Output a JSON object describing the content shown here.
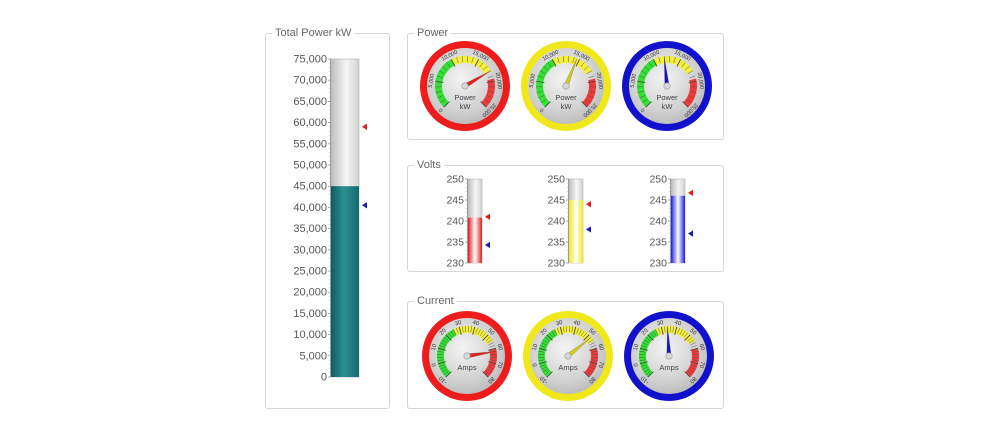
{
  "panels": {
    "total": "Total Power kW",
    "power": "Power",
    "volts": "Volts",
    "current": "Current"
  },
  "chart_data": [
    {
      "type": "linear-gauge",
      "panel": "total",
      "ticks": [
        "75,000",
        "70,000",
        "65,000",
        "60,000",
        "55,000",
        "50,000",
        "45,000",
        "40,000",
        "35,000",
        "30,000",
        "25,000",
        "20,000",
        "15,000",
        "10,000",
        "5,000",
        "0"
      ],
      "range": [
        0,
        75000
      ],
      "value": 45000,
      "markers": [
        {
          "value": 59000,
          "color": "#e01b1b"
        },
        {
          "value": 40500,
          "color": "#1a1ab0"
        }
      ],
      "fill_color": "#1d7a7e"
    },
    {
      "type": "radial-gauge",
      "panel": "power",
      "range": [
        0,
        25000
      ],
      "ticks": [
        "0",
        "5,000",
        "10,000",
        "15,000",
        "20,000",
        "25,000"
      ],
      "label_lines": [
        "Power",
        "kW"
      ],
      "gauges": [
        {
          "color": "#ee1c1c",
          "value": 18000
        },
        {
          "color": "#f0e81a",
          "value": 14500
        },
        {
          "color": "#1212cc",
          "value": 12000
        }
      ]
    },
    {
      "type": "linear-gauge",
      "panel": "volts",
      "range": [
        230,
        250
      ],
      "ticks": [
        "250",
        "245",
        "240",
        "235",
        "230"
      ],
      "gauges": [
        {
          "color": "#e01b1b",
          "value": 240.8,
          "marker_red": 241,
          "marker_blue": 234.3
        },
        {
          "color": "#f0e81a",
          "value": 245,
          "marker_red": 244,
          "marker_blue": 238
        },
        {
          "color": "#1a1ae6",
          "value": 246,
          "marker_red": 246.7,
          "marker_blue": 237
        }
      ]
    },
    {
      "type": "radial-gauge",
      "panel": "current",
      "range": [
        -10,
        80
      ],
      "ticks": [
        "-10",
        "0",
        "10",
        "20",
        "30",
        "40",
        "50",
        "60",
        "70",
        "80"
      ],
      "label_lines": [
        "Amps"
      ],
      "gauges": [
        {
          "color": "#ee1c1c",
          "value": 62
        },
        {
          "color": "#f0e81a",
          "value": 52
        },
        {
          "color": "#1212cc",
          "value": 34
        }
      ]
    }
  ]
}
